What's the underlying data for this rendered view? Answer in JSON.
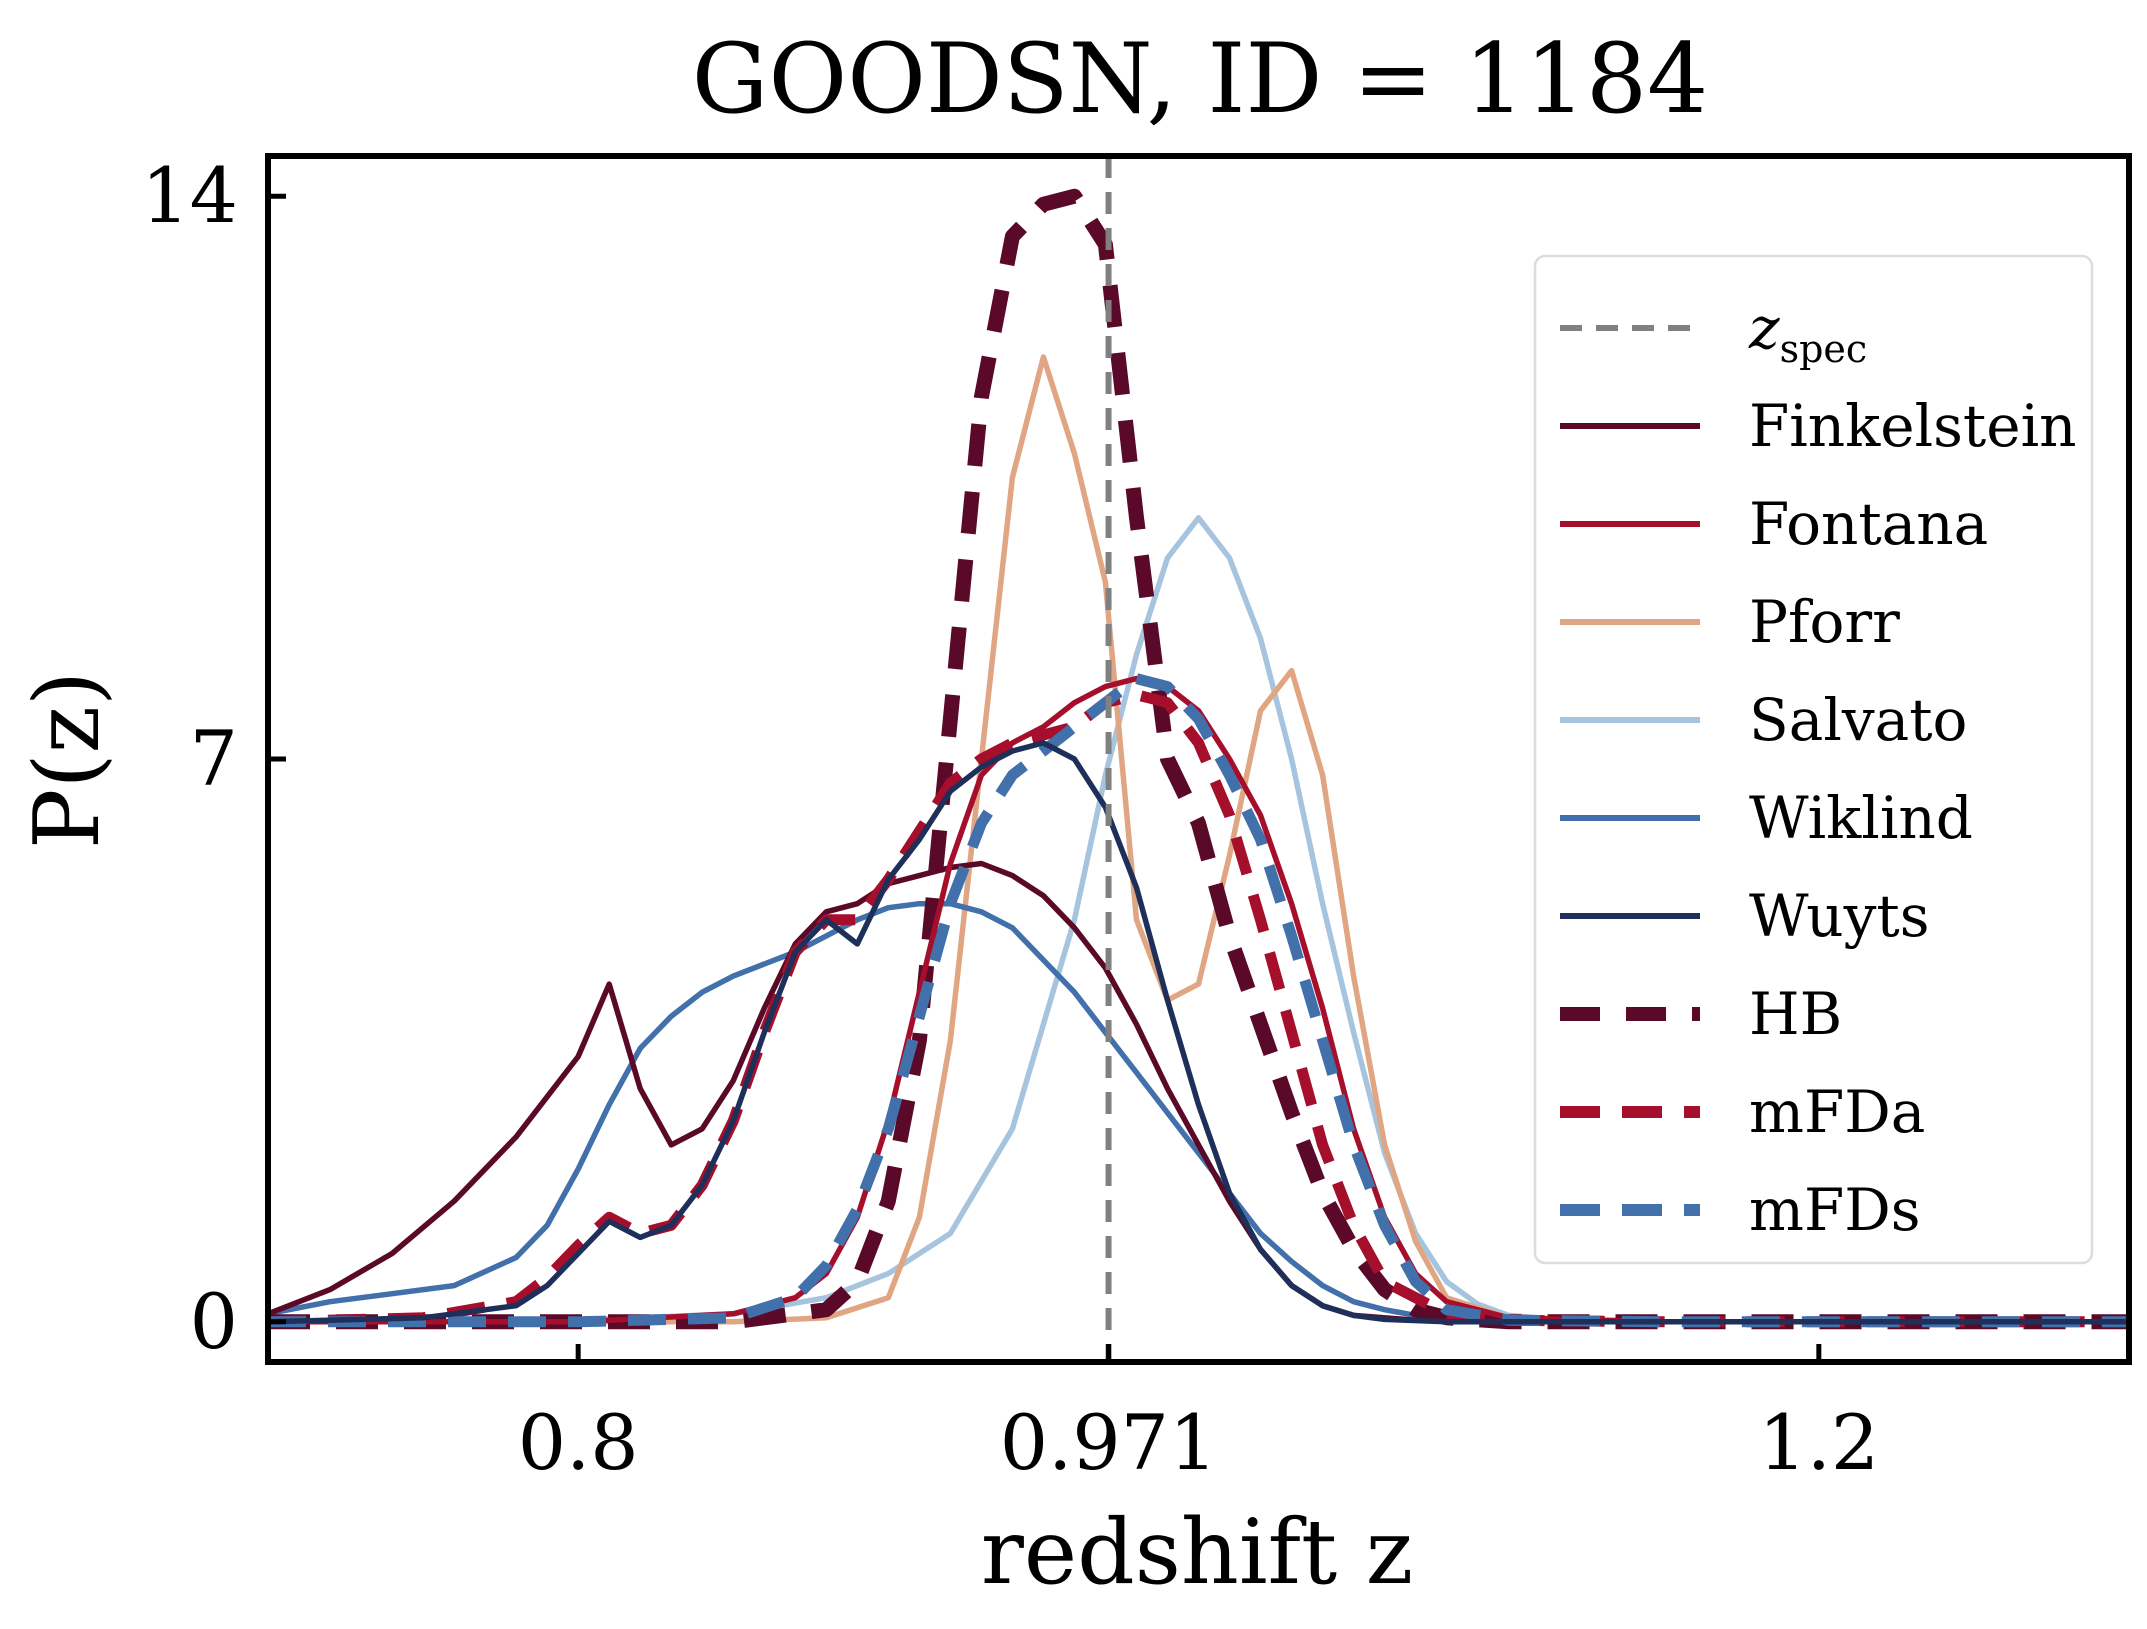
{
  "chart_data": {
    "type": "line",
    "title": "GOODSN, ID = 1184",
    "xlabel": "redshift z",
    "ylabel": "P(z)",
    "xlim": [
      0.7,
      1.3
    ],
    "ylim": [
      -0.5,
      14.5
    ],
    "xticks": [
      {
        "value": 0.8,
        "label": "0.8"
      },
      {
        "value": 0.971,
        "label": "0.971"
      },
      {
        "value": 1.2,
        "label": "1.2"
      }
    ],
    "yticks": [
      {
        "value": 0,
        "label": "0"
      },
      {
        "value": 7,
        "label": "7"
      },
      {
        "value": 14,
        "label": "14"
      }
    ],
    "zspec": 0.971,
    "zspec_label": {
      "main": "z",
      "sub": "spec"
    },
    "legend_position": "right",
    "grid": false,
    "series": [
      {
        "name": "Finkelstein",
        "color": "#5a0a28",
        "style": "solid",
        "x": [
          0.7,
          0.72,
          0.74,
          0.76,
          0.78,
          0.79,
          0.8,
          0.81,
          0.82,
          0.83,
          0.84,
          0.85,
          0.86,
          0.87,
          0.88,
          0.89,
          0.9,
          0.91,
          0.92,
          0.93,
          0.94,
          0.95,
          0.96,
          0.97,
          0.98,
          0.99,
          1.0,
          1.01,
          1.02,
          1.03,
          1.04,
          1.05,
          1.07,
          1.1,
          1.15,
          1.2,
          1.3
        ],
        "y": [
          0.1,
          0.4,
          0.85,
          1.5,
          2.3,
          2.8,
          3.3,
          4.2,
          2.9,
          2.2,
          2.4,
          3.0,
          3.9,
          4.7,
          5.1,
          5.2,
          5.45,
          5.55,
          5.65,
          5.7,
          5.55,
          5.3,
          4.9,
          4.4,
          3.7,
          2.9,
          2.2,
          1.5,
          0.9,
          0.45,
          0.2,
          0.08,
          0.02,
          0.0,
          0.0,
          0.0,
          0.0
        ]
      },
      {
        "name": "Fontana",
        "color": "#a50f2b",
        "style": "solid",
        "x": [
          0.7,
          0.75,
          0.8,
          0.85,
          0.87,
          0.88,
          0.89,
          0.9,
          0.91,
          0.92,
          0.93,
          0.94,
          0.95,
          0.96,
          0.97,
          0.98,
          0.99,
          1.0,
          1.01,
          1.02,
          1.03,
          1.04,
          1.05,
          1.06,
          1.07,
          1.08,
          1.1,
          1.15,
          1.3
        ],
        "y": [
          0.0,
          0.0,
          0.0,
          0.1,
          0.3,
          0.6,
          1.3,
          2.5,
          4.1,
          5.7,
          6.8,
          7.2,
          7.4,
          7.7,
          7.9,
          8.0,
          7.9,
          7.6,
          7.0,
          6.3,
          5.2,
          3.9,
          2.4,
          1.3,
          0.6,
          0.25,
          0.05,
          0.0,
          0.0
        ]
      },
      {
        "name": "Pforr",
        "color": "#e0a683",
        "style": "solid",
        "x": [
          0.7,
          0.85,
          0.88,
          0.9,
          0.91,
          0.92,
          0.93,
          0.94,
          0.95,
          0.96,
          0.97,
          0.98,
          0.99,
          1.0,
          1.01,
          1.02,
          1.03,
          1.04,
          1.05,
          1.06,
          1.07,
          1.08,
          1.1,
          1.15,
          1.3
        ],
        "y": [
          0.0,
          0.0,
          0.05,
          0.3,
          1.3,
          3.5,
          7.0,
          10.5,
          12.0,
          10.8,
          9.2,
          5.0,
          4.0,
          4.2,
          5.8,
          7.6,
          8.1,
          6.8,
          4.3,
          2.2,
          1.0,
          0.3,
          0.05,
          0.0,
          0.0
        ]
      },
      {
        "name": "Salvato",
        "color": "#a6c4de",
        "style": "solid",
        "x": [
          0.7,
          0.75,
          0.8,
          0.85,
          0.88,
          0.9,
          0.92,
          0.94,
          0.96,
          0.97,
          0.98,
          0.99,
          1.0,
          1.01,
          1.02,
          1.03,
          1.04,
          1.05,
          1.06,
          1.07,
          1.08,
          1.09,
          1.1,
          1.12,
          1.15,
          1.3
        ],
        "y": [
          0.0,
          0.0,
          0.02,
          0.1,
          0.3,
          0.6,
          1.1,
          2.4,
          5.0,
          6.8,
          8.3,
          9.5,
          10.0,
          9.5,
          8.5,
          7.0,
          5.2,
          3.6,
          2.1,
          1.1,
          0.5,
          0.22,
          0.08,
          0.02,
          0.0,
          0.0
        ]
      },
      {
        "name": "Wiklind",
        "color": "#4270aa",
        "style": "solid",
        "x": [
          0.7,
          0.72,
          0.74,
          0.76,
          0.78,
          0.79,
          0.8,
          0.81,
          0.82,
          0.83,
          0.84,
          0.85,
          0.86,
          0.87,
          0.88,
          0.89,
          0.9,
          0.91,
          0.92,
          0.93,
          0.94,
          0.95,
          0.96,
          0.97,
          0.98,
          0.99,
          1.0,
          1.01,
          1.02,
          1.03,
          1.04,
          1.05,
          1.06,
          1.07,
          1.08,
          1.1,
          1.15,
          1.2,
          1.3
        ],
        "y": [
          0.1,
          0.25,
          0.35,
          0.45,
          0.8,
          1.2,
          1.9,
          2.7,
          3.4,
          3.8,
          4.1,
          4.3,
          4.45,
          4.6,
          4.8,
          5.0,
          5.15,
          5.2,
          5.2,
          5.1,
          4.9,
          4.5,
          4.1,
          3.6,
          3.1,
          2.6,
          2.1,
          1.6,
          1.1,
          0.75,
          0.45,
          0.25,
          0.15,
          0.08,
          0.04,
          0.01,
          0.0,
          0.0,
          0.0
        ]
      },
      {
        "name": "Wuyts",
        "color": "#1e2f5a",
        "style": "solid",
        "x": [
          0.7,
          0.75,
          0.78,
          0.79,
          0.8,
          0.81,
          0.82,
          0.83,
          0.84,
          0.85,
          0.86,
          0.87,
          0.88,
          0.89,
          0.9,
          0.91,
          0.92,
          0.93,
          0.94,
          0.95,
          0.96,
          0.97,
          0.98,
          0.99,
          1.0,
          1.01,
          1.02,
          1.03,
          1.04,
          1.05,
          1.06,
          1.08,
          1.1,
          1.15,
          1.3
        ],
        "y": [
          0.0,
          0.05,
          0.2,
          0.45,
          0.85,
          1.25,
          1.05,
          1.2,
          1.7,
          2.5,
          3.6,
          4.6,
          5.0,
          4.7,
          5.5,
          6.0,
          6.6,
          6.9,
          7.1,
          7.2,
          7.0,
          6.4,
          5.4,
          4.0,
          2.7,
          1.6,
          0.9,
          0.45,
          0.2,
          0.08,
          0.03,
          0.0,
          0.0,
          0.0,
          0.0
        ]
      },
      {
        "name": "HB",
        "color": "#5a0a28",
        "style": "dash-thick",
        "x": [
          0.7,
          0.8,
          0.85,
          0.88,
          0.89,
          0.9,
          0.91,
          0.92,
          0.93,
          0.94,
          0.95,
          0.96,
          0.97,
          0.98,
          0.99,
          1.0,
          1.01,
          1.02,
          1.03,
          1.04,
          1.05,
          1.06,
          1.07,
          1.08,
          1.1,
          1.15,
          1.3
        ],
        "y": [
          0.0,
          0.0,
          0.0,
          0.15,
          0.5,
          1.5,
          3.5,
          7.5,
          11.5,
          13.5,
          13.9,
          14.0,
          13.4,
          10.0,
          7.0,
          6.2,
          4.8,
          3.7,
          2.6,
          1.6,
          0.9,
          0.4,
          0.15,
          0.05,
          0.0,
          0.0,
          0.0
        ]
      },
      {
        "name": "mFDa",
        "color": "#a50f2b",
        "style": "dash",
        "x": [
          0.7,
          0.75,
          0.78,
          0.79,
          0.8,
          0.81,
          0.82,
          0.83,
          0.84,
          0.85,
          0.86,
          0.87,
          0.88,
          0.89,
          0.9,
          0.91,
          0.92,
          0.93,
          0.94,
          0.95,
          0.96,
          0.97,
          0.98,
          0.99,
          1.0,
          1.01,
          1.02,
          1.03,
          1.04,
          1.05,
          1.06,
          1.08,
          1.1,
          1.15,
          1.3
        ],
        "y": [
          0.0,
          0.05,
          0.25,
          0.55,
          0.95,
          1.3,
          1.1,
          1.2,
          1.7,
          2.5,
          3.6,
          4.6,
          5.0,
          5.0,
          5.5,
          6.1,
          6.7,
          7.0,
          7.2,
          7.3,
          7.4,
          7.7,
          7.8,
          7.7,
          7.2,
          6.3,
          5.0,
          3.6,
          2.2,
          1.2,
          0.5,
          0.1,
          0.02,
          0.0,
          0.0
        ]
      },
      {
        "name": "mFDs",
        "color": "#4270aa",
        "style": "dash",
        "x": [
          0.7,
          0.8,
          0.85,
          0.87,
          0.88,
          0.89,
          0.9,
          0.91,
          0.92,
          0.93,
          0.94,
          0.95,
          0.96,
          0.97,
          0.98,
          0.99,
          1.0,
          1.01,
          1.02,
          1.03,
          1.04,
          1.05,
          1.06,
          1.07,
          1.08,
          1.1,
          1.15,
          1.3
        ],
        "y": [
          0.0,
          0.0,
          0.05,
          0.3,
          0.7,
          1.4,
          2.4,
          3.8,
          5.2,
          6.2,
          6.8,
          7.1,
          7.4,
          7.7,
          8.0,
          7.9,
          7.5,
          6.8,
          6.0,
          4.8,
          3.5,
          2.2,
          1.2,
          0.5,
          0.15,
          0.02,
          0.0,
          0.0
        ]
      }
    ]
  }
}
